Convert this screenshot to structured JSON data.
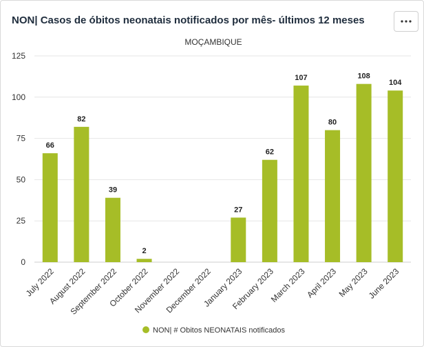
{
  "header": {
    "title": "NON| Casos de óbitos neonatais notificados por mês- últimos 12 meses",
    "menu_icon": "more-horizontal-icon"
  },
  "colors": {
    "bar": "#a6bd27",
    "grid": "#e6e6e6",
    "axis": "#cccccc"
  },
  "chart_data": {
    "type": "bar",
    "title": "NON| Casos de óbitos neonatais notificados por mês- últimos 12 meses",
    "subtitle": "MOÇAMBIQUE",
    "categories": [
      "July 2022",
      "August 2022",
      "September 2022",
      "October 2022",
      "November 2022",
      "December 2022",
      "January 2023",
      "February 2023",
      "March 2023",
      "April 2023",
      "May 2023",
      "June 2023"
    ],
    "series": [
      {
        "name": "NON| # Obitos NEONATAIS notificados",
        "values": [
          66,
          82,
          39,
          2,
          null,
          null,
          27,
          62,
          107,
          80,
          108,
          104
        ]
      }
    ],
    "yticks": [
      "0",
      "25",
      "50",
      "75",
      "100",
      "125"
    ],
    "ylim": [
      0,
      125
    ],
    "xlabel": "",
    "ylabel": "",
    "grid": true,
    "legend": "bottom-center"
  }
}
